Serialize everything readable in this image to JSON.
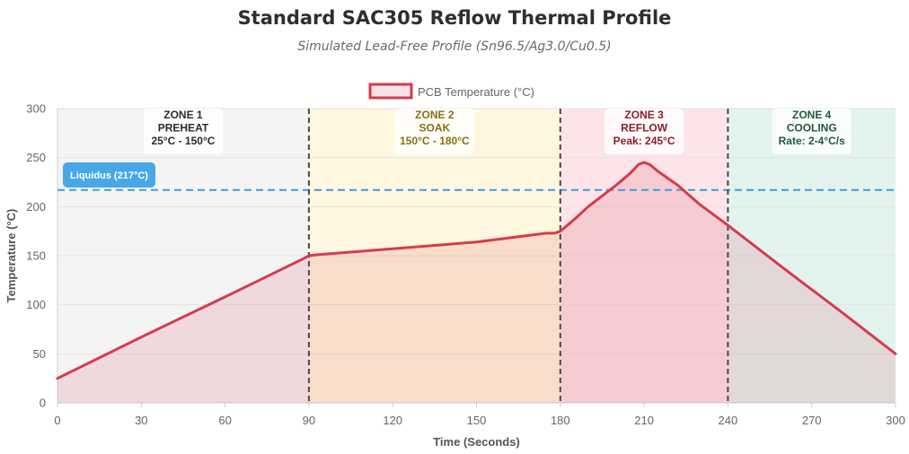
{
  "header": {
    "title": "Standard SAC305 Reflow Thermal Profile",
    "subtitle": "Simulated Lead-Free Profile (Sn96.5/Ag3.0/Cu0.5)"
  },
  "chart_data": {
    "type": "area",
    "xlabel": "Time (Seconds)",
    "ylabel": "Temperature (°C)",
    "xlim": [
      0,
      300
    ],
    "ylim": [
      0,
      300
    ],
    "x_ticks": [
      0,
      30,
      60,
      90,
      120,
      150,
      180,
      210,
      240,
      270,
      300
    ],
    "y_ticks": [
      0,
      50,
      100,
      150,
      200,
      250,
      300
    ],
    "grid": true,
    "legend_position": "top-center",
    "series": [
      {
        "name": "PCB Temperature (°C)",
        "color": "#d63b4c",
        "fill": "rgba(214,59,76,0.14)",
        "points": [
          [
            0,
            25
          ],
          [
            30,
            67
          ],
          [
            60,
            108
          ],
          [
            88,
            147
          ],
          [
            90,
            150
          ],
          [
            93,
            151
          ],
          [
            120,
            157
          ],
          [
            150,
            164
          ],
          [
            175,
            173
          ],
          [
            178,
            173
          ],
          [
            180,
            175
          ],
          [
            185,
            187
          ],
          [
            190,
            200
          ],
          [
            200,
            222
          ],
          [
            205,
            234
          ],
          [
            208,
            243
          ],
          [
            210,
            245
          ],
          [
            212,
            243
          ],
          [
            215,
            236
          ],
          [
            222,
            222
          ],
          [
            230,
            202
          ],
          [
            240,
            181
          ],
          [
            260,
            137
          ],
          [
            280,
            94
          ],
          [
            300,
            50
          ]
        ]
      }
    ],
    "reference_lines": [
      {
        "label": "Liquidus (217°C)",
        "y": 217,
        "color": "#3b9be0"
      }
    ],
    "zones": [
      {
        "x0": 0,
        "x1": 90,
        "fill": "#f4f4f4",
        "text_color": "#2b2b2b",
        "lines": [
          "ZONE 1",
          "PREHEAT",
          "25°C - 150°C"
        ]
      },
      {
        "x0": 90,
        "x1": 180,
        "fill": "#fff7df",
        "text_color": "#8a6d0e",
        "lines": [
          "ZONE 2",
          "SOAK",
          "150°C - 180°C"
        ]
      },
      {
        "x0": 180,
        "x1": 240,
        "fill": "#fde4e8",
        "text_color": "#8a1f2c",
        "lines": [
          "ZONE 3",
          "REFLOW",
          "Peak: 245°C"
        ]
      },
      {
        "x0": 240,
        "x1": 300,
        "fill": "#e3f3ee",
        "text_color": "#1f5a3f",
        "lines": [
          "ZONE 4",
          "COOLING",
          "Rate: 2-4°C/s"
        ]
      }
    ],
    "zone_boundaries": [
      90,
      180,
      240
    ]
  }
}
